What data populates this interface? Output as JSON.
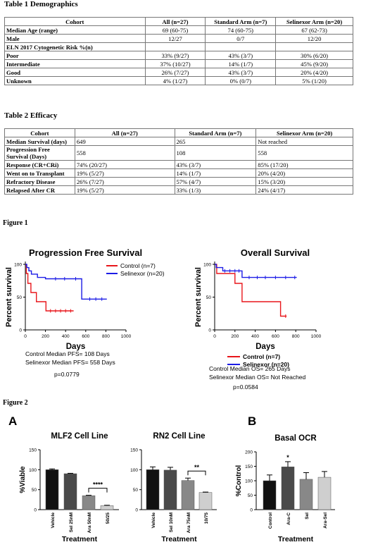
{
  "table1": {
    "caption": "Table 1 Demographics",
    "headers": [
      "Cohort",
      "All (n=27)",
      "Standard Arm (n=7)",
      "Selinexor Arm (n=20)"
    ],
    "rows": [
      {
        "label": "Median Age (range)",
        "cells": [
          "69 (60-75)",
          "74 (60-75)",
          "67 (62-73)"
        ]
      },
      {
        "label": "Male",
        "cells": [
          "12/27",
          "0/7",
          "12/20"
        ]
      },
      {
        "label": "ELN 2017 Cytogenetic Risk %(n)",
        "cells": [
          "",
          "",
          ""
        ]
      },
      {
        "label": "Poor",
        "cells": [
          "33% (9/27)",
          "43% (3/7)",
          "30% (6/20)"
        ]
      },
      {
        "label": "Intermediate",
        "cells": [
          "37% (10/27)",
          "14% (1/7)",
          "45% (9/20)"
        ]
      },
      {
        "label": "Good",
        "cells": [
          "26% (7/27)",
          "43% (3/7)",
          "20% (4/20)"
        ]
      },
      {
        "label": "Unknown",
        "cells": [
          "4% (1/27)",
          "0% (0/7)",
          "5% (1/20)"
        ]
      }
    ]
  },
  "table2": {
    "caption": "Table 2 Efficacy",
    "headers": [
      "Cohort",
      "All (n=27)",
      "Standard Arm (n=7)",
      "Selinexor Arm (n=20)"
    ],
    "rows": [
      {
        "label": "Median Survival (days)",
        "cells": [
          "649",
          "265",
          "Not reached"
        ]
      },
      {
        "label": "Progression Free Survival (Days)",
        "cells": [
          "558",
          "108",
          "558"
        ]
      },
      {
        "label": "Response (CR+CRi)",
        "cells": [
          "74% (20/27)",
          "43% (3/7)",
          "85% (17/20)"
        ]
      },
      {
        "label": "Went on to Transplant",
        "cells": [
          "19% (5/27)",
          "14% (1/7)",
          "20% (4/20)"
        ]
      },
      {
        "label": "Refractory Disease",
        "cells": [
          "26% (7/27)",
          "57% (4/7)",
          "15% (3/20)"
        ]
      },
      {
        "label": "Relapsed After CR",
        "cells": [
          "19% (5/27)",
          "33% (1/3)",
          "24% (4/17)"
        ]
      }
    ]
  },
  "figure1": {
    "label": "Figure 1",
    "colors": {
      "control": "#e8161b",
      "selinexor": "#1c1ce6"
    },
    "pfs": {
      "title": "Progression Free Survival",
      "ylabel": "Percent survival",
      "xlabel": "Days",
      "legend": [
        "Control (n=7)",
        "Selinexor (n=20)"
      ],
      "notes": [
        "Control Median PFS= 108 Days",
        "Selinexor Median PFS= 558 Days"
      ],
      "pvalue": "p=0.0779"
    },
    "os": {
      "title": "Overall Survival",
      "ylabel": "Percent survival",
      "xlabel": "Days",
      "legend": [
        "Control (n=7)",
        "Selinexor (n=20)"
      ],
      "notes": [
        "Control Median OS= 265 Days",
        "Selinexor Median OS= Not Reached"
      ],
      "pvalue": "p=0.0584"
    }
  },
  "figure2": {
    "label": "Figure 2",
    "panelA": "A",
    "panelB": "B"
  },
  "chart_data": [
    {
      "type": "line",
      "title": "Progression Free Survival",
      "xlabel": "Days",
      "ylabel": "Percent survival",
      "xlim": [
        0,
        1000
      ],
      "ylim": [
        0,
        100
      ],
      "xticks": [
        0,
        200,
        400,
        600,
        800,
        1000
      ],
      "yticks": [
        0,
        50,
        100
      ],
      "legend": "top-right",
      "series": [
        {
          "name": "Control (n=7)",
          "color": "#e8161b",
          "x": [
            0,
            10,
            10,
            25,
            25,
            55,
            55,
            110,
            110,
            205,
            205,
            480
          ],
          "y": [
            100,
            100,
            86,
            86,
            71,
            71,
            57,
            57,
            43,
            43,
            29,
            29
          ],
          "censor_x": [
            250,
            300,
            350,
            400,
            450
          ]
        },
        {
          "name": "Selinexor (n=20)",
          "color": "#1c1ce6",
          "x": [
            0,
            15,
            15,
            35,
            35,
            60,
            60,
            120,
            120,
            200,
            200,
            560,
            560,
            810
          ],
          "y": [
            100,
            100,
            95,
            95,
            90,
            90,
            85,
            85,
            80,
            80,
            78,
            78,
            47,
            47
          ],
          "censor_x": [
            300,
            390,
            500,
            640,
            700,
            760
          ]
        }
      ]
    },
    {
      "type": "line",
      "title": "Overall Survival",
      "xlabel": "Days",
      "ylabel": "Percent survival",
      "xlim": [
        0,
        1000
      ],
      "ylim": [
        0,
        100
      ],
      "xticks": [
        0,
        200,
        400,
        600,
        800,
        1000
      ],
      "yticks": [
        0,
        50,
        100
      ],
      "legend": "bottom",
      "series": [
        {
          "name": "Control (n=7)",
          "color": "#e8161b",
          "x": [
            0,
            20,
            20,
            200,
            200,
            270,
            270,
            650,
            650,
            710
          ],
          "y": [
            100,
            100,
            86,
            86,
            71,
            71,
            43,
            43,
            21,
            21
          ],
          "censor_x": [
            700
          ]
        },
        {
          "name": "Selinexor (n=20)",
          "color": "#1c1ce6",
          "x": [
            0,
            15,
            15,
            80,
            80,
            270,
            270,
            810
          ],
          "y": [
            100,
            100,
            95,
            95,
            90,
            90,
            80,
            80
          ],
          "censor_x": [
            100,
            150,
            200,
            240,
            340,
            420,
            500,
            600,
            700,
            790
          ]
        }
      ]
    },
    {
      "type": "bar",
      "title": "MLF2 Cell Line",
      "xlabel": "Treatment",
      "ylabel": "%Viable",
      "ylim": [
        0,
        150
      ],
      "yticks": [
        0,
        50,
        100,
        150
      ],
      "categories": [
        "Vehicle",
        "Sel 25nM",
        "Ara 50nM",
        "50/25"
      ],
      "values": [
        100,
        90,
        35,
        10
      ],
      "errors": [
        2,
        1,
        1,
        1
      ],
      "bar_colors": [
        "#111111",
        "#4a4a4a",
        "#888888",
        "#cfcfcf"
      ],
      "significance": {
        "from": 2,
        "to": 3,
        "label": "****"
      }
    },
    {
      "type": "bar",
      "title": "RN2 Cell Line",
      "xlabel": "Treatment",
      "ylabel": "",
      "ylim": [
        0,
        150
      ],
      "yticks": [
        0,
        50,
        100,
        150
      ],
      "categories": [
        "Vehicle",
        "Sel 10nM",
        "Ara 75nM",
        "10/75"
      ],
      "values": [
        100,
        99,
        73,
        43
      ],
      "errors": [
        7,
        7,
        6,
        1
      ],
      "bar_colors": [
        "#111111",
        "#4a4a4a",
        "#888888",
        "#cfcfcf"
      ],
      "significance": {
        "from": 2,
        "to": 3,
        "label": "**"
      }
    },
    {
      "type": "bar",
      "title": "Basal OCR",
      "xlabel": "Treatment",
      "ylabel": "%Control",
      "ylim": [
        0,
        200
      ],
      "yticks": [
        0,
        50,
        100,
        150,
        200
      ],
      "categories": [
        "Control",
        "Ara-C",
        "Sel",
        "Ara-Sel"
      ],
      "values": [
        100,
        148,
        105,
        112
      ],
      "errors": [
        20,
        18,
        23,
        20
      ],
      "bar_colors": [
        "#111111",
        "#4a4a4a",
        "#888888",
        "#cfcfcf"
      ],
      "significance": {
        "at": 1,
        "label": "*"
      }
    }
  ]
}
